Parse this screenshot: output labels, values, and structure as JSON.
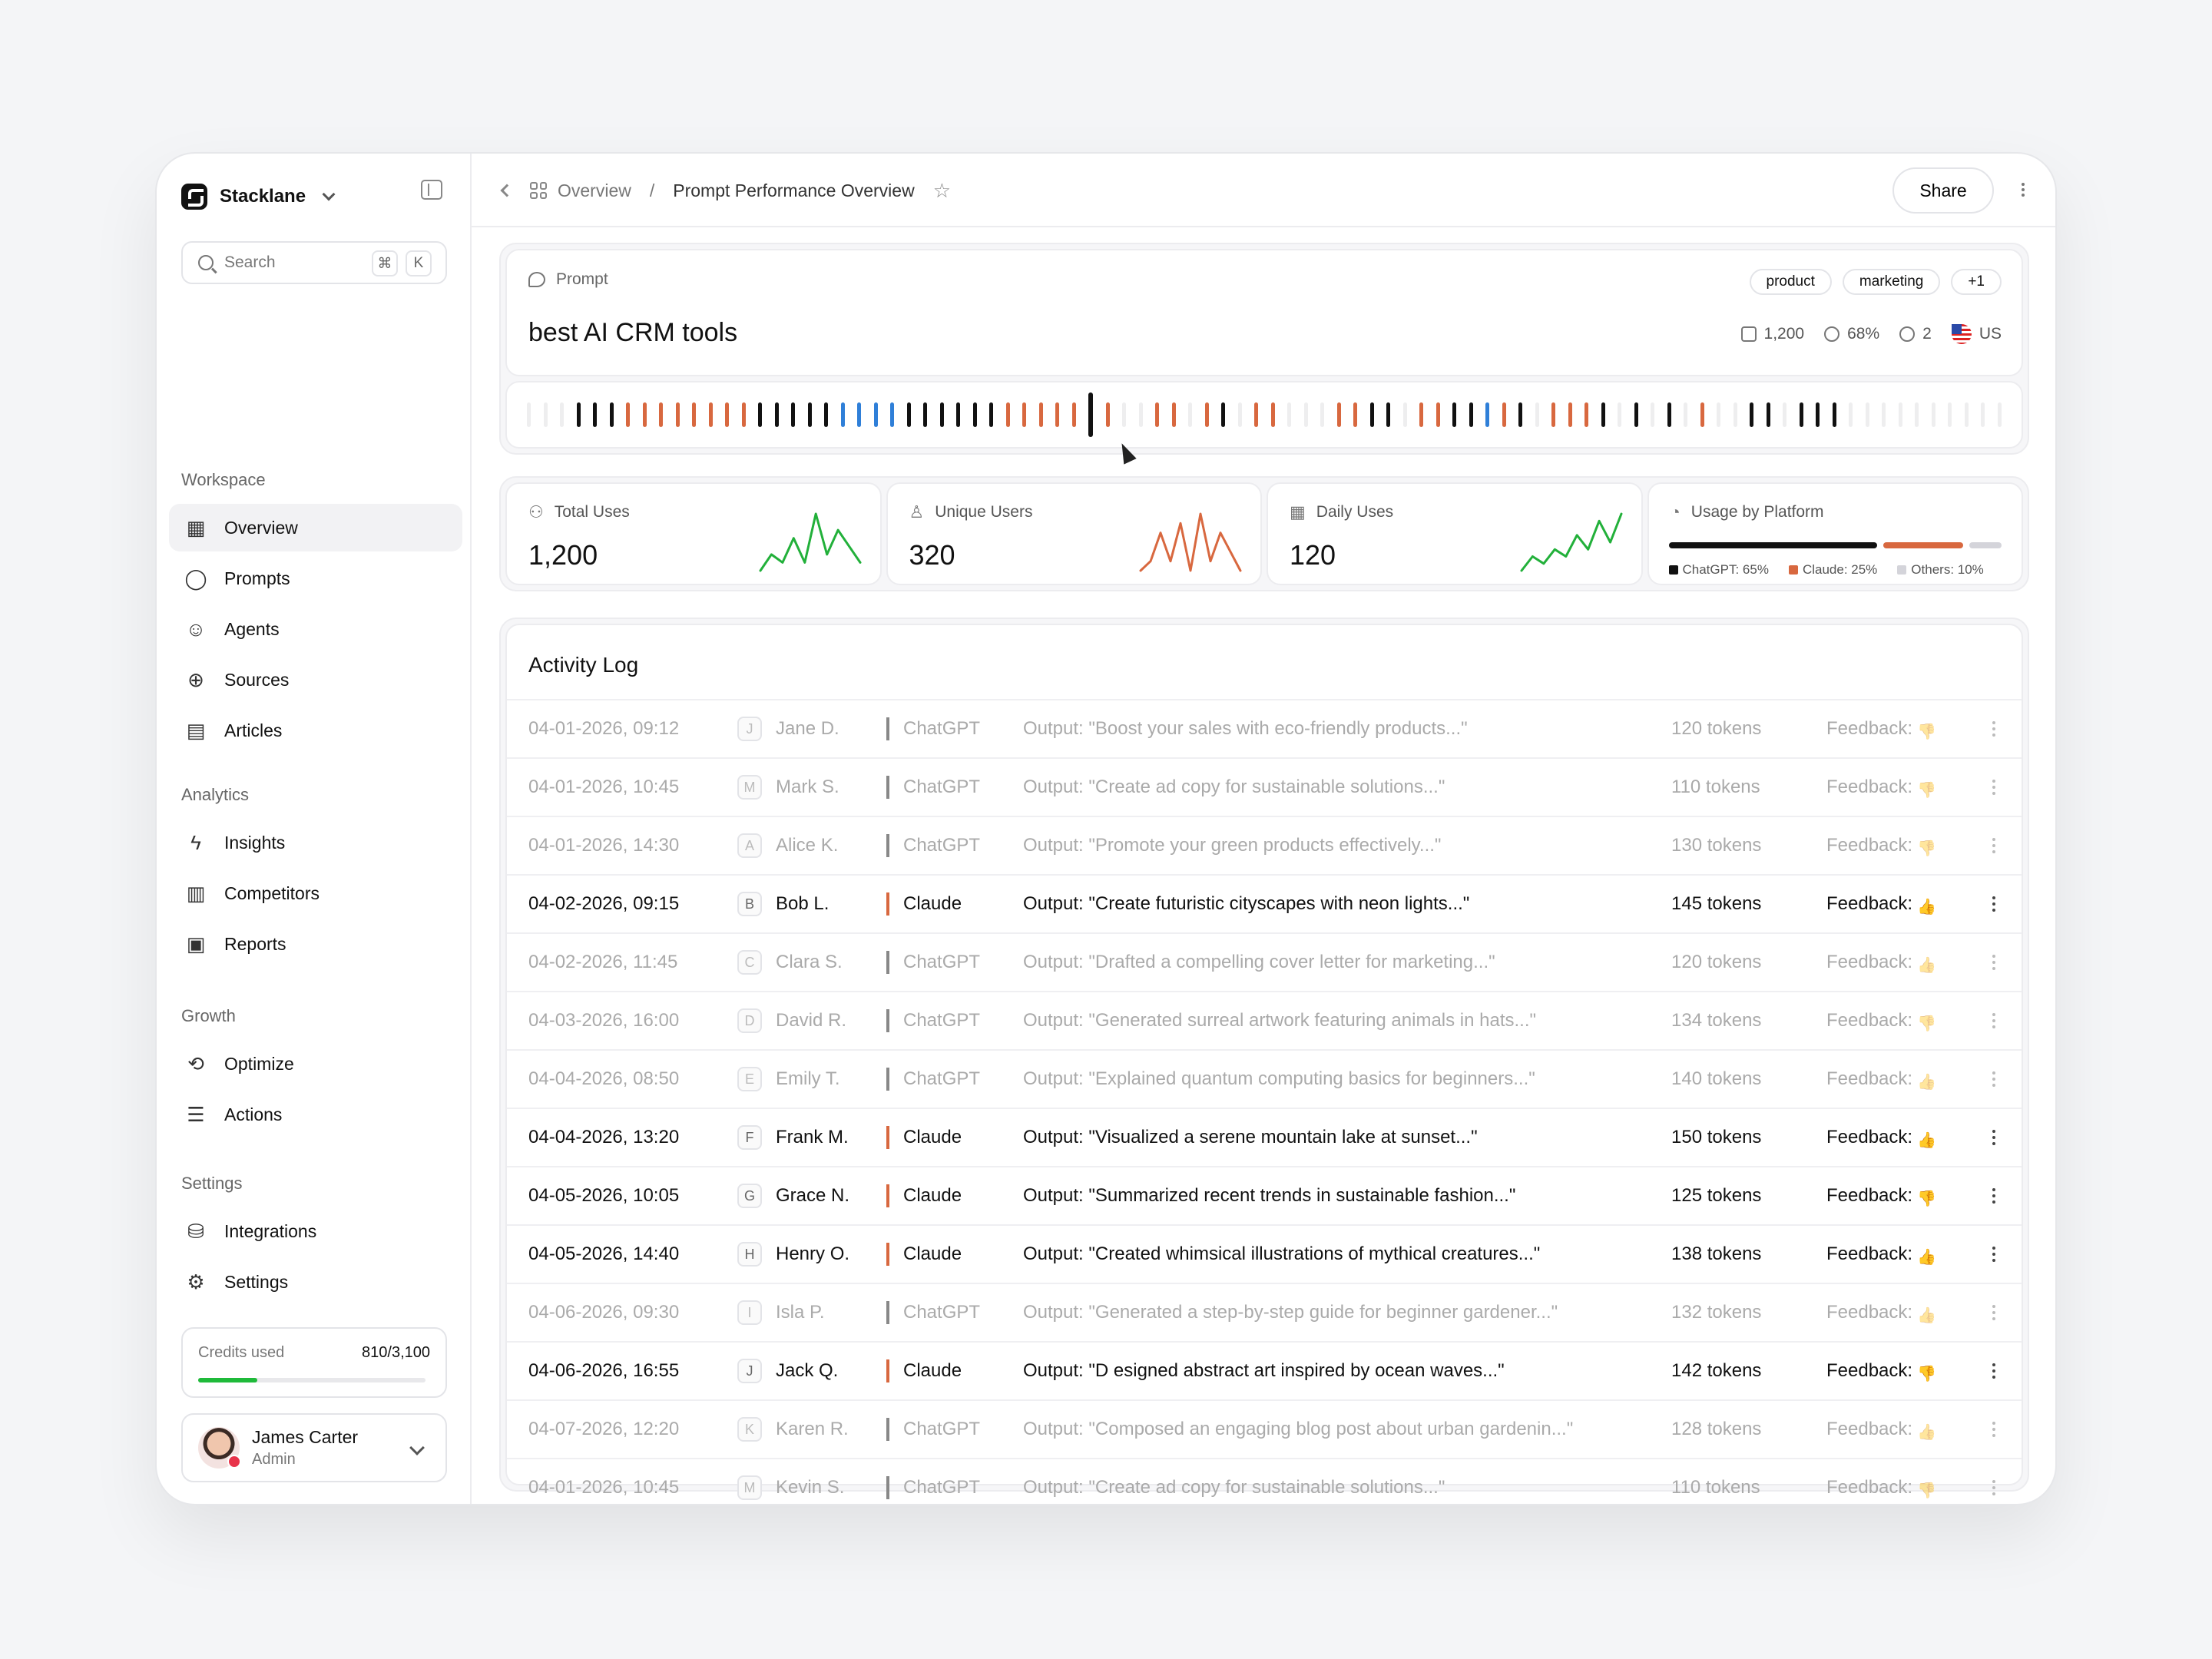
{
  "workspace": {
    "name": "Stacklane"
  },
  "search": {
    "placeholder": "Search",
    "kbd1": "⌘",
    "kbd2": "K"
  },
  "sidebar": {
    "sections": [
      {
        "title": "Workspace",
        "items": [
          {
            "label": "Overview",
            "icon": "grid-icon",
            "active": true
          },
          {
            "label": "Prompts",
            "icon": "chat-bubble-icon"
          },
          {
            "label": "Agents",
            "icon": "robot-icon"
          },
          {
            "label": "Sources",
            "icon": "globe-icon"
          },
          {
            "label": "Articles",
            "icon": "document-icon"
          }
        ]
      },
      {
        "title": "Analytics",
        "items": [
          {
            "label": "Insights",
            "icon": "lightning-icon"
          },
          {
            "label": "Competitors",
            "icon": "bar-chart-icon"
          },
          {
            "label": "Reports",
            "icon": "report-icon"
          }
        ]
      },
      {
        "title": "Growth",
        "items": [
          {
            "label": "Optimize",
            "icon": "refresh-icon"
          },
          {
            "label": "Actions",
            "icon": "list-icon"
          }
        ]
      },
      {
        "title": "Settings",
        "items": [
          {
            "label": "Integrations",
            "icon": "database-icon"
          },
          {
            "label": "Settings",
            "icon": "gear-icon"
          }
        ]
      }
    ]
  },
  "credits": {
    "label": "Credits used",
    "value": "810/3,100",
    "fraction": 0.261,
    "color": "#1fba3a"
  },
  "user": {
    "name": "James Carter",
    "role": "Admin"
  },
  "breadcrumb": {
    "root": "Overview",
    "separator": "/",
    "current": "Prompt Performance Overview"
  },
  "topbar": {
    "share_label": "Share"
  },
  "prompt": {
    "label": "Prompt",
    "title": "best AI CRM tools",
    "tags": [
      "product",
      "marketing",
      "+1"
    ],
    "stats": {
      "uses": "1,200",
      "visibility": "68%",
      "mentions": "2",
      "country": "US"
    }
  },
  "timeline": {
    "ticks": "gggkkkooooooookkkkkbbbbkkkkkkoooookoggoogokgoogggookkgookkbokgoookgkgkgoggkkgkkkgggggggggg",
    "highlight_index": 34,
    "colors": {
      "k": "#111111",
      "o": "#d8683f",
      "b": "#2f7fd8",
      "g": "#eeeeef"
    }
  },
  "metrics": [
    {
      "label": "Total Uses",
      "value": "1,200",
      "icon": "users-icon",
      "color": "#22b03a",
      "spark": [
        2,
        4,
        3,
        6,
        3,
        9,
        4,
        7,
        5,
        3
      ]
    },
    {
      "label": "Unique Users",
      "value": "320",
      "icon": "user-icon",
      "color": "#d8683f",
      "spark": [
        2,
        3,
        6,
        3,
        7,
        2,
        8,
        3,
        6,
        4,
        2
      ]
    },
    {
      "label": "Daily Uses",
      "value": "120",
      "icon": "calendar-icon",
      "color": "#22b03a",
      "spark": [
        2,
        4,
        3,
        5,
        4,
        7,
        5,
        9,
        6,
        10
      ]
    }
  ],
  "platform": {
    "label": "Usage by Platform",
    "icon": "pie-icon",
    "items": [
      {
        "name": "ChatGPT: 65%",
        "share": 0.65,
        "color": "#111111"
      },
      {
        "name": "Claude: 25%",
        "share": 0.25,
        "color": "#d8683f"
      },
      {
        "name": "Others: 10%",
        "share": 0.1,
        "color": "#d4d4da"
      }
    ]
  },
  "activity": {
    "title": "Activity Log",
    "rows": [
      {
        "date": "04-01-2026, 09:12",
        "initial": "J",
        "user": "Jane D.",
        "platform": "ChatGPT",
        "output": "Output: \"Boost your sales with eco-friendly products...\"",
        "tokens": "120 tokens",
        "feedback": "Feedback:",
        "thumb": "down",
        "dim": true
      },
      {
        "date": "04-01-2026, 10:45",
        "initial": "M",
        "user": "Mark S.",
        "platform": "ChatGPT",
        "output": "Output: \"Create ad copy for sustainable solutions...\"",
        "tokens": "110 tokens",
        "feedback": "Feedback:",
        "thumb": "down",
        "dim": true
      },
      {
        "date": "04-01-2026, 14:30",
        "initial": "A",
        "user": "Alice K.",
        "platform": "ChatGPT",
        "output": "Output: \"Promote your green products effectively...\"",
        "tokens": "130 tokens",
        "feedback": "Feedback:",
        "thumb": "down",
        "dim": true
      },
      {
        "date": "04-02-2026, 09:15",
        "initial": "B",
        "user": "Bob L.",
        "platform": "Claude",
        "output": "Output: \"Create futuristic cityscapes with neon lights...\"",
        "tokens": "145 tokens",
        "feedback": "Feedback:",
        "thumb": "up",
        "dim": false
      },
      {
        "date": "04-02-2026, 11:45",
        "initial": "C",
        "user": "Clara S.",
        "platform": "ChatGPT",
        "output": "Output: \"Drafted a compelling cover letter for marketing...\"",
        "tokens": "120 tokens",
        "feedback": "Feedback:",
        "thumb": "up",
        "dim": true
      },
      {
        "date": "04-03-2026, 16:00",
        "initial": "D",
        "user": "David R.",
        "platform": "ChatGPT",
        "output": "Output: \"Generated surreal artwork featuring animals in hats...\"",
        "tokens": "134 tokens",
        "feedback": "Feedback:",
        "thumb": "down",
        "dim": true
      },
      {
        "date": "04-04-2026, 08:50",
        "initial": "E",
        "user": "Emily T.",
        "platform": "ChatGPT",
        "output": "Output: \"Explained quantum computing basics for beginners...\"",
        "tokens": "140 tokens",
        "feedback": "Feedback:",
        "thumb": "up",
        "dim": true
      },
      {
        "date": "04-04-2026, 13:20",
        "initial": "F",
        "user": "Frank M.",
        "platform": "Claude",
        "output": "Output: \"Visualized a serene mountain lake at sunset...\"",
        "tokens": "150 tokens",
        "feedback": "Feedback:",
        "thumb": "up",
        "dim": false
      },
      {
        "date": "04-05-2026, 10:05",
        "initial": "G",
        "user": "Grace N.",
        "platform": "Claude",
        "output": "Output: \"Summarized recent trends in sustainable fashion...\"",
        "tokens": "125 tokens",
        "feedback": "Feedback:",
        "thumb": "down",
        "dim": false
      },
      {
        "date": "04-05-2026, 14:40",
        "initial": "H",
        "user": "Henry O.",
        "platform": "Claude",
        "output": "Output: \"Created whimsical illustrations of mythical creatures...\"",
        "tokens": "138 tokens",
        "feedback": "Feedback:",
        "thumb": "up",
        "dim": false
      },
      {
        "date": "04-06-2026, 09:30",
        "initial": "I",
        "user": "Isla P.",
        "platform": "ChatGPT",
        "output": "Output: \"Generated a step-by-step guide for beginner gardener...\"",
        "tokens": "132 tokens",
        "feedback": "Feedback:",
        "thumb": "up",
        "dim": true
      },
      {
        "date": "04-06-2026, 16:55",
        "initial": "J",
        "user": "Jack Q.",
        "platform": "Claude",
        "output": "Output: \"D esigned abstract art inspired by ocean waves...\"",
        "tokens": "142 tokens",
        "feedback": "Feedback:",
        "thumb": "down",
        "dim": false
      },
      {
        "date": "04-07-2026, 12:20",
        "initial": "K",
        "user": "Karen R.",
        "platform": "ChatGPT",
        "output": "Output: \"Composed an engaging blog post about urban gardenin...\"",
        "tokens": "128 tokens",
        "feedback": "Feedback:",
        "thumb": "up",
        "dim": true
      },
      {
        "date": "04-01-2026, 10:45",
        "initial": "M",
        "user": "Kevin S.",
        "platform": "ChatGPT",
        "output": "Output: \"Create ad copy for sustainable solutions...\"",
        "tokens": "110 tokens",
        "feedback": "Feedback:",
        "thumb": "down",
        "dim": true
      }
    ]
  }
}
